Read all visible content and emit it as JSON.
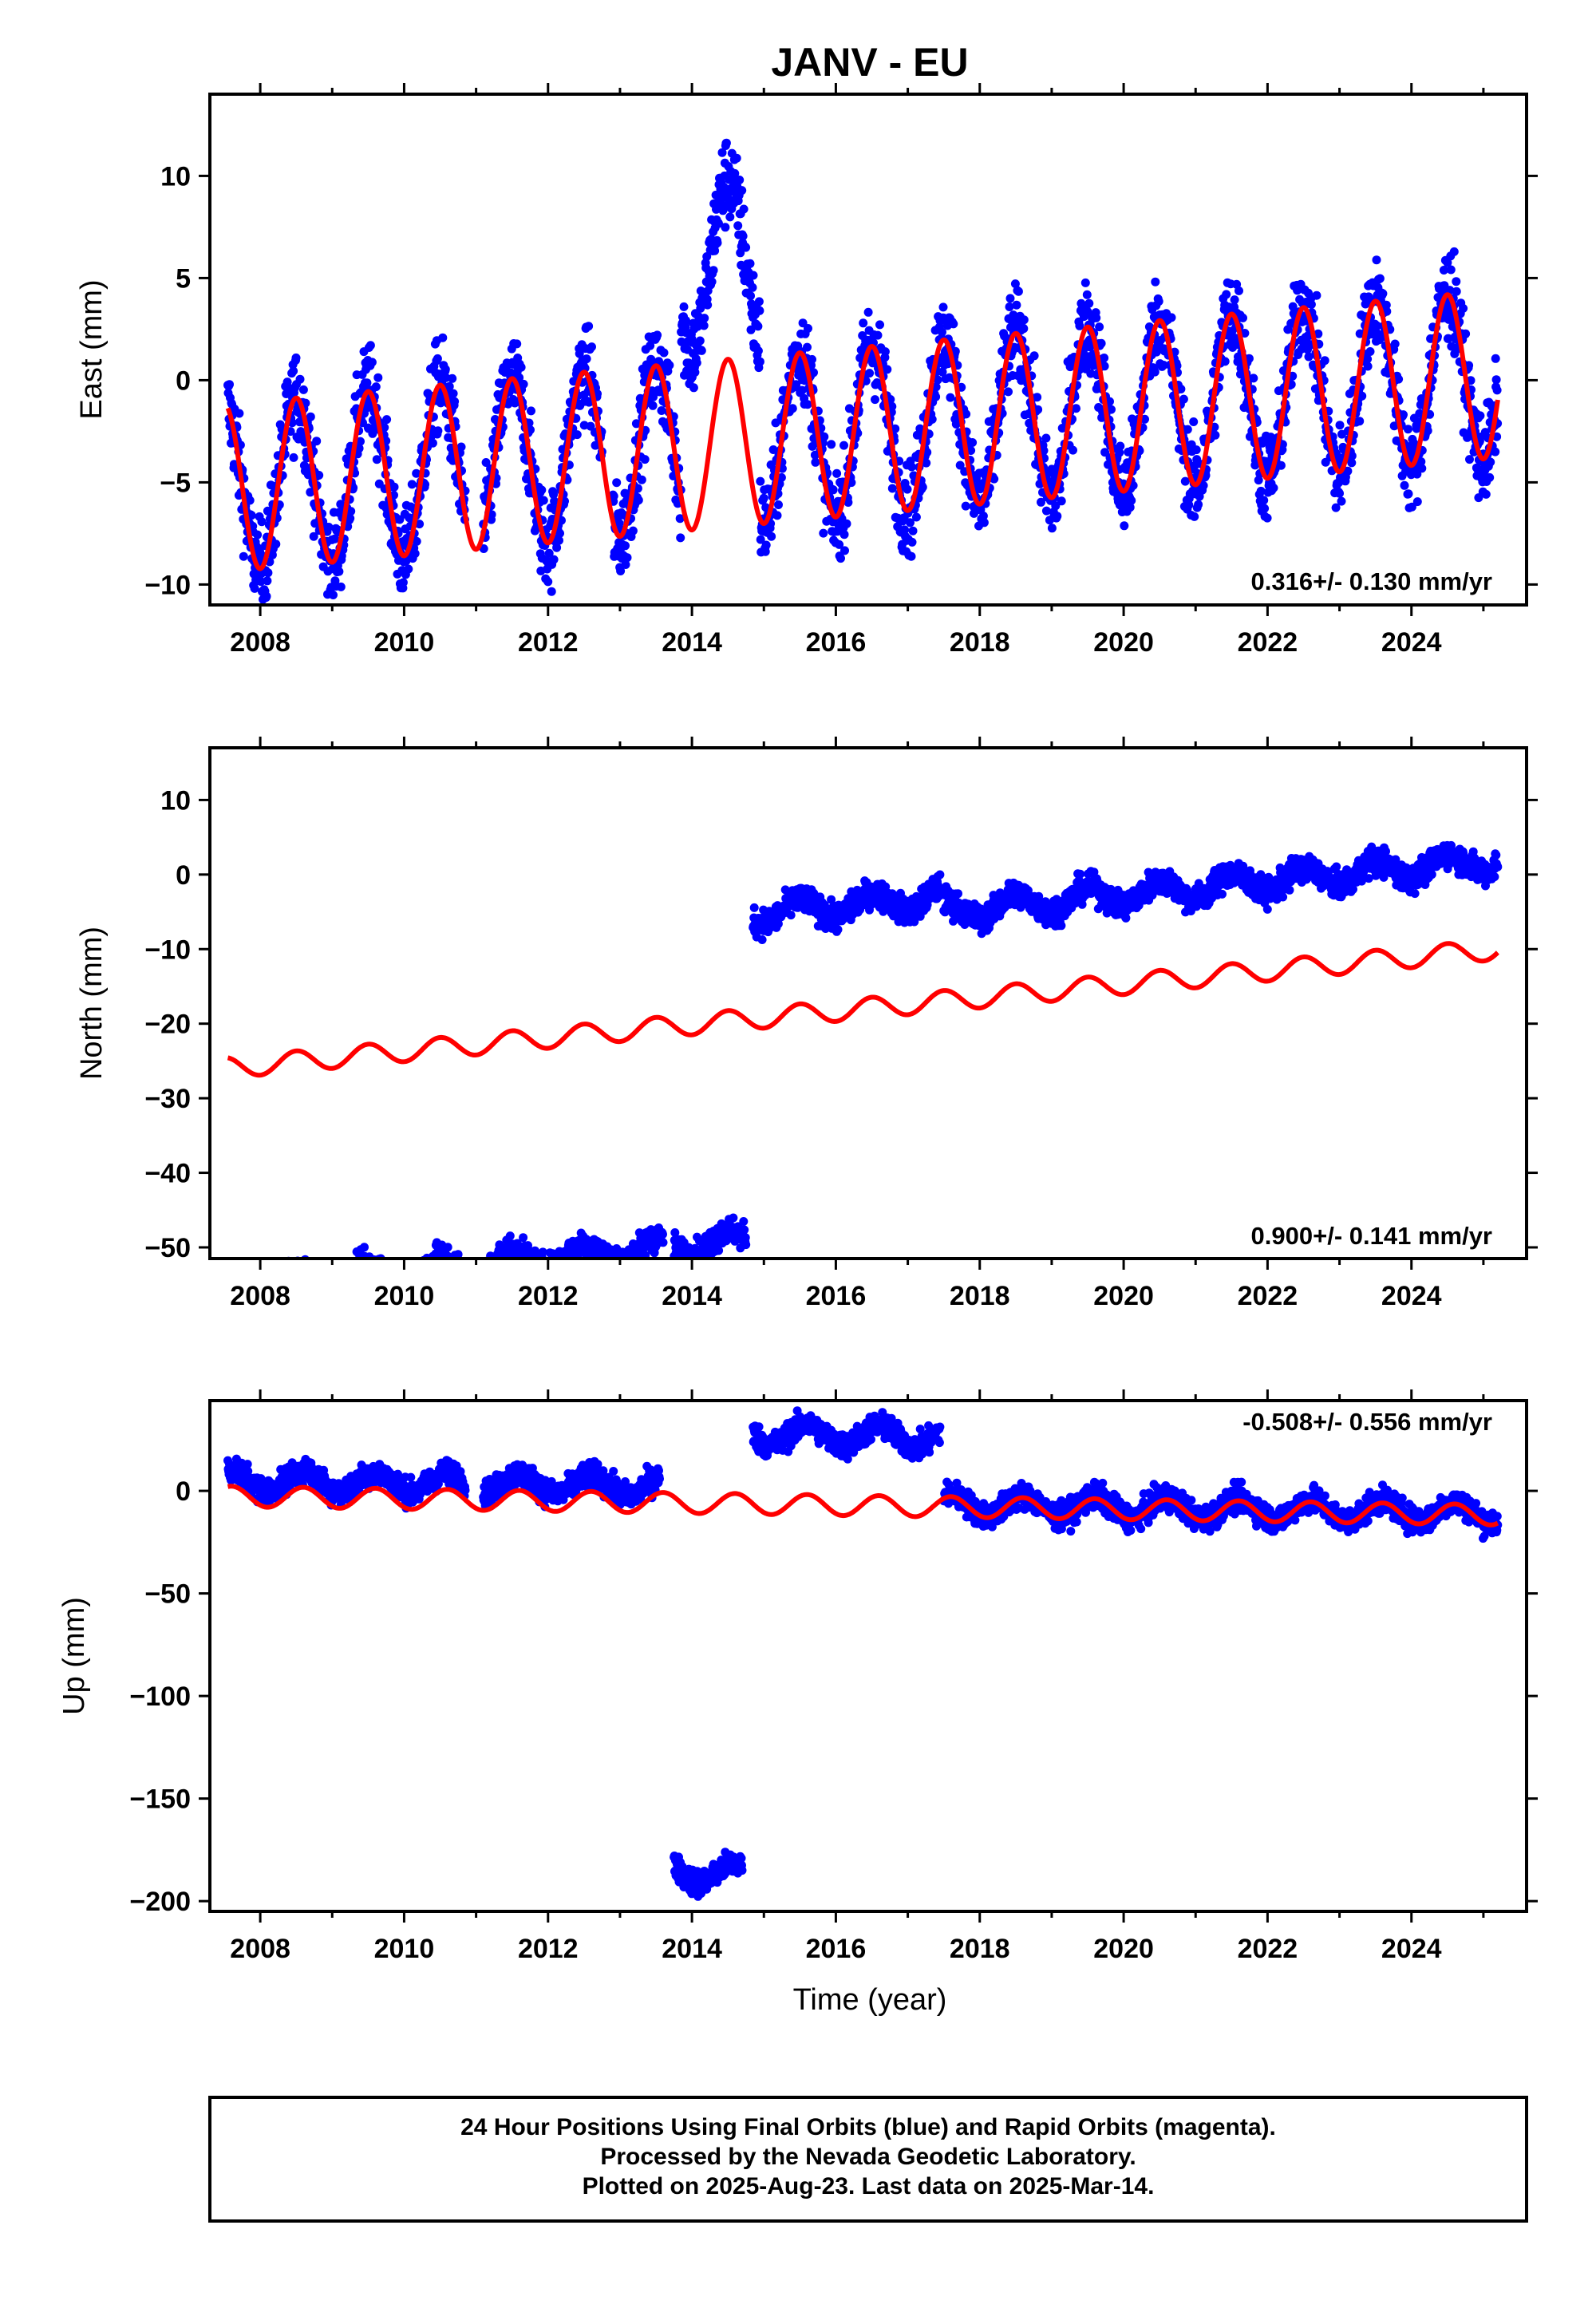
{
  "title": "JANV - EU",
  "footer": {
    "lines": [
      "24 Hour Positions Using Final Orbits (blue) and Rapid Orbits (magenta).",
      "Processed by the Nevada Geodetic Laboratory.",
      "Plotted on 2025-Aug-23. Last data on 2025-Mar-14."
    ]
  },
  "colors": {
    "data": "#0000ff",
    "model": "#ff0000",
    "frame": "#000000"
  },
  "chart_data": [
    {
      "type": "scatter",
      "name": "east",
      "ylabel": "East (mm)",
      "xlabel": "",
      "xlim": [
        2007.3,
        2025.6
      ],
      "ylim": [
        -11.0,
        14.0
      ],
      "yticks": [
        -10,
        -5,
        0,
        5,
        10
      ],
      "xticks": [
        2008,
        2010,
        2012,
        2014,
        2016,
        2018,
        2020,
        2022,
        2024
      ],
      "rate_text": "0.316+/- 0.130 mm/yr",
      "rate_position": "bottom-right",
      "model": {
        "start": 2007.55,
        "end": 2025.2,
        "offset": -2.6,
        "trend": 0.316,
        "amplitude": 4.1,
        "peak_phase": 0.5
      },
      "scatter_noise": 1.6,
      "segments": [
        {
          "start": 2007.55,
          "end": 2013.85,
          "offset": 0.0
        },
        {
          "start": 2013.85,
          "end": 2014.95,
          "offset": 8.8
        },
        {
          "start": 2014.95,
          "end": 2025.2,
          "offset": 0.0
        }
      ],
      "gaps": [
        [
          2010.85,
          2011.1
        ],
        [
          2012.75,
          2012.9
        ]
      ]
    },
    {
      "type": "scatter",
      "name": "north",
      "ylabel": "North (mm)",
      "xlabel": "",
      "xlim": [
        2007.3,
        2025.6
      ],
      "ylim": [
        -51.5,
        17.0
      ],
      "yticks": [
        -50,
        -40,
        -30,
        -20,
        -10,
        0,
        10
      ],
      "xticks": [
        2008,
        2010,
        2012,
        2014,
        2016,
        2018,
        2020,
        2022,
        2024
      ],
      "rate_text": "0.900+/- 0.141 mm/yr",
      "rate_position": "bottom-right",
      "model": {
        "start": 2007.55,
        "end": 2025.2,
        "offset": -18.3,
        "trend": 0.9,
        "amplitude": 1.4,
        "peak_phase": 0.5
      },
      "scatter_noise": 1.3,
      "segments": [
        {
          "start": 2007.55,
          "end": 2014.75,
          "offset": -29.5
        },
        {
          "start": 2014.85,
          "end": 2017.45,
          "offset": 14.0
        },
        {
          "start": 2017.5,
          "end": 2025.2,
          "offset": 12.0
        }
      ],
      "gaps": [
        [
          2010.85,
          2011.1
        ],
        [
          2013.6,
          2013.75
        ]
      ]
    },
    {
      "type": "scatter",
      "name": "up",
      "ylabel": "Up (mm)",
      "xlabel": "Time (year)",
      "xlim": [
        2007.3,
        2025.6
      ],
      "ylim": [
        -205.0,
        44.0
      ],
      "yticks": [
        -200,
        -150,
        -100,
        -50,
        0
      ],
      "xticks": [
        2008,
        2010,
        2012,
        2014,
        2016,
        2018,
        2020,
        2022,
        2024
      ],
      "rate_text": "-0.508+/- 0.556 mm/yr",
      "rate_position": "top-right",
      "model": {
        "start": 2007.55,
        "end": 2025.2,
        "offset": -7.0,
        "trend": -0.508,
        "amplitude": 5.0,
        "peak_phase": 0.6
      },
      "scatter_noise": 4.5,
      "segments": [
        {
          "start": 2007.55,
          "end": 2013.55,
          "offset": 8.0
        },
        {
          "start": 2013.75,
          "end": 2014.7,
          "offset": -180.0
        },
        {
          "start": 2014.85,
          "end": 2017.45,
          "offset": 34.0
        },
        {
          "start": 2017.5,
          "end": 2025.2,
          "offset": 1.0
        }
      ],
      "gaps": [
        [
          2010.85,
          2011.1
        ]
      ]
    }
  ]
}
